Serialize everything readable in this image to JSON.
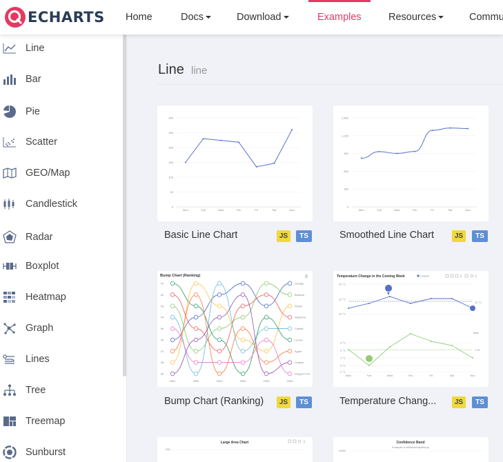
{
  "app": {
    "logo_text": "ECHARTS"
  },
  "nav": {
    "home": "Home",
    "docs": "Docs",
    "download": "Download",
    "examples": "Examples",
    "resources": "Resources",
    "community": "Community"
  },
  "colors": {
    "accent": "#e43961",
    "logo": "#293c55",
    "chart": "#5470c6",
    "js_badge": "#f0d93a",
    "ts_badge": "#5d8fd4"
  },
  "sidebar": {
    "items": [
      {
        "label": "Line",
        "icon": "line-chart-icon"
      },
      {
        "label": "Bar",
        "icon": "bar-chart-icon"
      },
      {
        "label": "Pie",
        "icon": "pie-chart-icon"
      },
      {
        "label": "Scatter",
        "icon": "scatter-chart-icon"
      },
      {
        "label": "GEO/Map",
        "icon": "map-icon"
      },
      {
        "label": "Candlestick",
        "icon": "candlestick-icon"
      },
      {
        "label": "Radar",
        "icon": "radar-icon"
      },
      {
        "label": "Boxplot",
        "icon": "boxplot-icon"
      },
      {
        "label": "Heatmap",
        "icon": "heatmap-icon"
      },
      {
        "label": "Graph",
        "icon": "graph-icon"
      },
      {
        "label": "Lines",
        "icon": "lines-icon"
      },
      {
        "label": "Tree",
        "icon": "tree-icon"
      },
      {
        "label": "Treemap",
        "icon": "treemap-icon"
      },
      {
        "label": "Sunburst",
        "icon": "sunburst-icon"
      }
    ]
  },
  "section": {
    "title": "Line",
    "subtitle": "line"
  },
  "cards": [
    {
      "title": "Basic Line Chart",
      "js": "JS",
      "ts": "TS"
    },
    {
      "title": "Smoothed Line Chart",
      "js": "JS",
      "ts": "TS"
    },
    {
      "title": "Bump Chart (Ranking)",
      "js": "JS",
      "ts": "TS"
    },
    {
      "title": "Temperature Chang...",
      "js": "JS",
      "ts": "TS"
    },
    {
      "title": "",
      "js": "",
      "ts": ""
    },
    {
      "title": "",
      "js": "",
      "ts": ""
    }
  ],
  "thumbnails": {
    "basic": {
      "weekdays": [
        "Mon",
        "Tue",
        "Wed",
        "Thu",
        "Fri",
        "Sat",
        "Sun"
      ],
      "y_ticks": [
        "300",
        "250",
        "200",
        "150",
        "100",
        "50",
        "0"
      ],
      "values": [
        150,
        230,
        224,
        218,
        135,
        147,
        260
      ],
      "ylim": [
        0,
        300
      ]
    },
    "smooth": {
      "weekdays": [
        "Mon",
        "Tue",
        "Wed",
        "Thu",
        "Fri",
        "Sat",
        "Sun"
      ],
      "y_ticks": [
        "1,500",
        "1,200",
        "900",
        "600",
        "300",
        "0"
      ],
      "values": [
        820,
        932,
        901,
        934,
        1290,
        1330,
        1320
      ],
      "ylim": [
        0,
        1500
      ]
    },
    "bump": {
      "title": "Bump Chart (Ranking)",
      "ranks": [
        "#1",
        "#2",
        "#3",
        "#4",
        "#5",
        "#6",
        "#7",
        "#8",
        "#9"
      ],
      "years": [
        "2001",
        "2002",
        "2003",
        "2004",
        "2005",
        "2006"
      ],
      "names": [
        "Orange",
        "Banana",
        "Plants",
        "Satsuma",
        "Catalia",
        "Lemon",
        "Apple",
        "Grapes",
        "Dragon Fruit"
      ]
    },
    "temperature": {
      "title": "Temperature Change in the Coming Week",
      "legend": "Lowest",
      "y_ticks_top": [
        "14 °C",
        "12 °C",
        "10 °C"
      ],
      "y_ticks_bottom": [
        "3 °C",
        "2 °C",
        "1 °C",
        "0 °C",
        "-1 °C"
      ],
      "weekdays": [
        "Mon",
        "Tue",
        "Wed",
        "Thu",
        "Fri",
        "Sat",
        "Sun"
      ],
      "labels": [
        "Max",
        "Min",
        "Avg"
      ],
      "readouts": [
        "11 °C",
        "1.57"
      ]
    },
    "large_area": {
      "title": "Large Area Chart",
      "y_tick": "250"
    },
    "confidence": {
      "title": "Confidence Band",
      "subtitle": "Example in MetricsGraphics.js",
      "y_tick": "100%"
    }
  }
}
